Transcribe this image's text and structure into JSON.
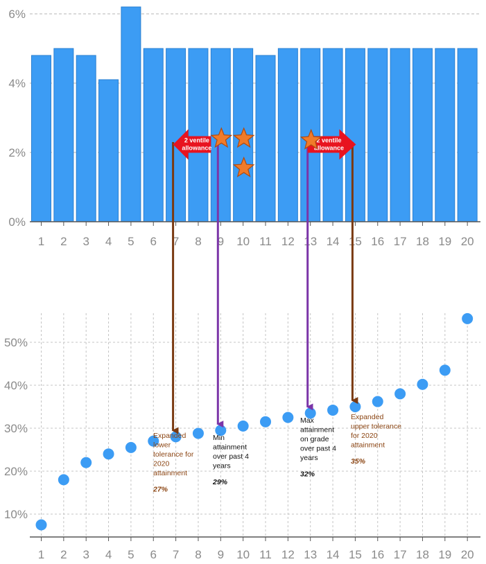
{
  "chart_data": [
    {
      "type": "bar",
      "categories": [
        "1",
        "2",
        "3",
        "4",
        "5",
        "6",
        "7",
        "8",
        "9",
        "10",
        "11",
        "12",
        "13",
        "14",
        "15",
        "16",
        "17",
        "18",
        "19",
        "20"
      ],
      "values": [
        4.8,
        5.0,
        4.8,
        4.1,
        6.2,
        5.0,
        5.0,
        5.0,
        5.0,
        5.0,
        4.8,
        5.0,
        5.0,
        5.0,
        5.0,
        5.0,
        5.0,
        5.0,
        5.0,
        5.0
      ],
      "ylim": [
        0,
        6.3
      ],
      "yticks": [
        "0%",
        "2%",
        "4%",
        "6%"
      ],
      "ytick_values": [
        0,
        2,
        4,
        6
      ],
      "grid": true,
      "bar_color": "#3c9cf4",
      "stars": [
        {
          "x": 9,
          "y": 2.4
        },
        {
          "x": 10,
          "y": 2.4
        },
        {
          "x": 10,
          "y": 1.55
        },
        {
          "x": 13,
          "y": 2.35
        }
      ],
      "star_color": "#f07b2a",
      "arrows": [
        {
          "label_lines": [
            "2 ventile",
            "allowance"
          ],
          "direction": "left",
          "from_x": 9,
          "to_x": 7,
          "y": 2.35
        },
        {
          "label_lines": [
            "2 ventile",
            "allowance"
          ],
          "direction": "right",
          "from_x": 13,
          "to_x": 15,
          "y": 2.35
        }
      ],
      "arrow_color": "#e8131f"
    },
    {
      "type": "scatter",
      "x": [
        1,
        2,
        3,
        4,
        5,
        6,
        7,
        8,
        9,
        10,
        11,
        12,
        13,
        14,
        15,
        16,
        17,
        18,
        19,
        20
      ],
      "y": [
        7.5,
        18,
        22,
        24,
        25.5,
        27,
        28,
        28.8,
        29.5,
        30.5,
        31.5,
        32.5,
        33.5,
        34.2,
        35,
        36.2,
        38,
        40.2,
        43.5,
        55.5
      ],
      "ylim": [
        5,
        61
      ],
      "yticks": [
        "10%",
        "20%",
        "30%",
        "40%",
        "50%"
      ],
      "ytick_values": [
        10,
        20,
        30,
        40,
        50
      ],
      "grid": true,
      "point_color": "#3c9cf4",
      "annotations": [
        {
          "x": 7,
          "color": "brown",
          "lines": [
            "Expanded",
            "lower",
            "tolerance for",
            "2020",
            "attainment"
          ],
          "value": "27%"
        },
        {
          "x": 9,
          "color": "black",
          "lines": [
            "Min",
            "attainment",
            "over past 4",
            "years"
          ],
          "value": "29%"
        },
        {
          "x": 13,
          "color": "black",
          "lines": [
            "Max",
            "attainment",
            "on grade",
            "over past 4",
            "years"
          ],
          "value": "32%"
        },
        {
          "x": 15,
          "color": "brown",
          "lines": [
            "Expanded",
            "upper tolerance",
            "for 2020",
            "attainment"
          ],
          "value": "35%"
        }
      ]
    }
  ],
  "connectors": [
    {
      "x": 7,
      "color": "#7a3a12"
    },
    {
      "x": 9,
      "color": "#7b35a8"
    },
    {
      "x": 13,
      "color": "#7b35a8"
    },
    {
      "x": 15,
      "color": "#7a3a12"
    }
  ]
}
